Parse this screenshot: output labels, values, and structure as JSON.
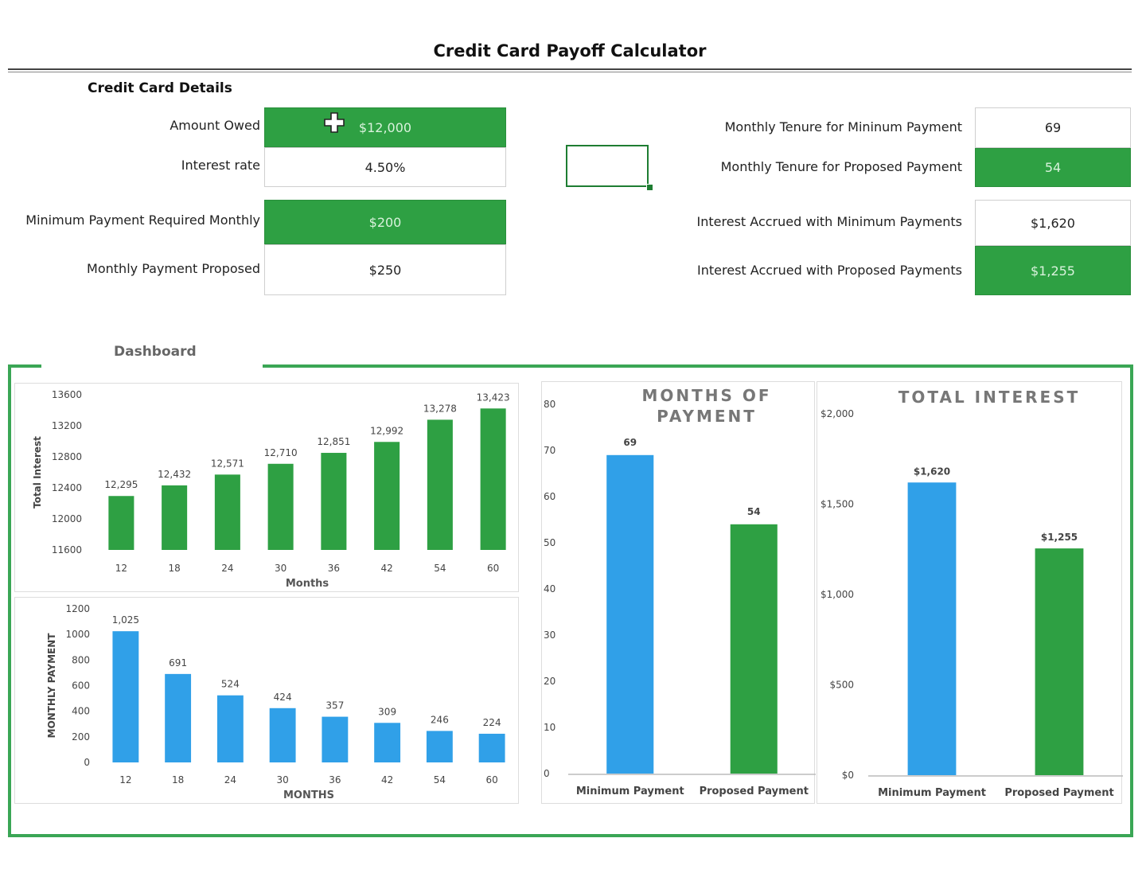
{
  "title": "Credit Card Payoff Calculator",
  "details": {
    "heading": "Credit Card Details",
    "amount_owed_label": "Amount Owed",
    "amount_owed": "$12,000",
    "interest_rate_label": "Interest rate",
    "interest_rate": "4.50%",
    "min_payment_label": "Minimum Payment Required Monthly",
    "min_payment": "$200",
    "proposed_payment_label": "Monthly Payment Proposed",
    "proposed_payment": "$250"
  },
  "results": {
    "tenure_min_label": "Monthly Tenure for Mininum Payment",
    "tenure_min": "69",
    "tenure_proposed_label": "Monthly Tenure for Proposed Payment",
    "tenure_proposed": "54",
    "interest_min_label": "Interest Accrued with Minimum Payments",
    "interest_min": "$1,620",
    "interest_proposed_label": "Interest Accrued with Proposed Payments",
    "interest_proposed": "$1,255"
  },
  "dashboard": {
    "label": "Dashboard"
  },
  "colors": {
    "green": "#2ea043",
    "blue": "#30a0e8",
    "frame": "#3aa655"
  },
  "chart_data": [
    {
      "type": "bar",
      "categories": [
        "12",
        "18",
        "24",
        "30",
        "36",
        "42",
        "54",
        "60"
      ],
      "values": [
        12295,
        12432,
        12571,
        12710,
        12851,
        12992,
        13278,
        13423
      ],
      "data_labels": [
        "12,295",
        "12,432",
        "12,571",
        "12,710",
        "12,851",
        "12,992",
        "13,278",
        "13,423"
      ],
      "xlabel": "Months",
      "ylabel": "Total Interest",
      "ylim": [
        11600,
        13600
      ],
      "yticks": [
        "11600",
        "12000",
        "12400",
        "12800",
        "13200",
        "13600"
      ],
      "color": "#2ea043"
    },
    {
      "type": "bar",
      "categories": [
        "12",
        "18",
        "24",
        "30",
        "36",
        "42",
        "54",
        "60"
      ],
      "values": [
        1025,
        691,
        524,
        424,
        357,
        309,
        246,
        224
      ],
      "data_labels": [
        "1,025",
        "691",
        "524",
        "424",
        "357",
        "309",
        "246",
        "224"
      ],
      "xlabel": "MONTHS",
      "ylabel": "MONTHLY PAYMENT",
      "ylim": [
        0,
        1200
      ],
      "yticks": [
        "0",
        "200",
        "400",
        "600",
        "800",
        "1000",
        "1200"
      ],
      "color": "#30a0e8"
    },
    {
      "type": "bar",
      "title": "MONTHS OF PAYMENT",
      "categories": [
        "Minimum Payment",
        "Proposed Payment"
      ],
      "values": [
        69,
        54
      ],
      "data_labels": [
        "69",
        "54"
      ],
      "ylim": [
        0,
        80
      ],
      "yticks": [
        "0",
        "10",
        "20",
        "30",
        "40",
        "50",
        "60",
        "70",
        "80"
      ],
      "colors": [
        "#30a0e8",
        "#2ea043"
      ]
    },
    {
      "type": "bar",
      "title": "TOTAL INTEREST",
      "categories": [
        "Minimum Payment",
        "Proposed Payment"
      ],
      "values": [
        1620,
        1255
      ],
      "data_labels": [
        "$1,620",
        "$1,255"
      ],
      "ylim": [
        0,
        2000
      ],
      "yticks": [
        "$0",
        "$500",
        "$1,000",
        "$1,500",
        "$2,000"
      ],
      "colors": [
        "#30a0e8",
        "#2ea043"
      ]
    }
  ]
}
